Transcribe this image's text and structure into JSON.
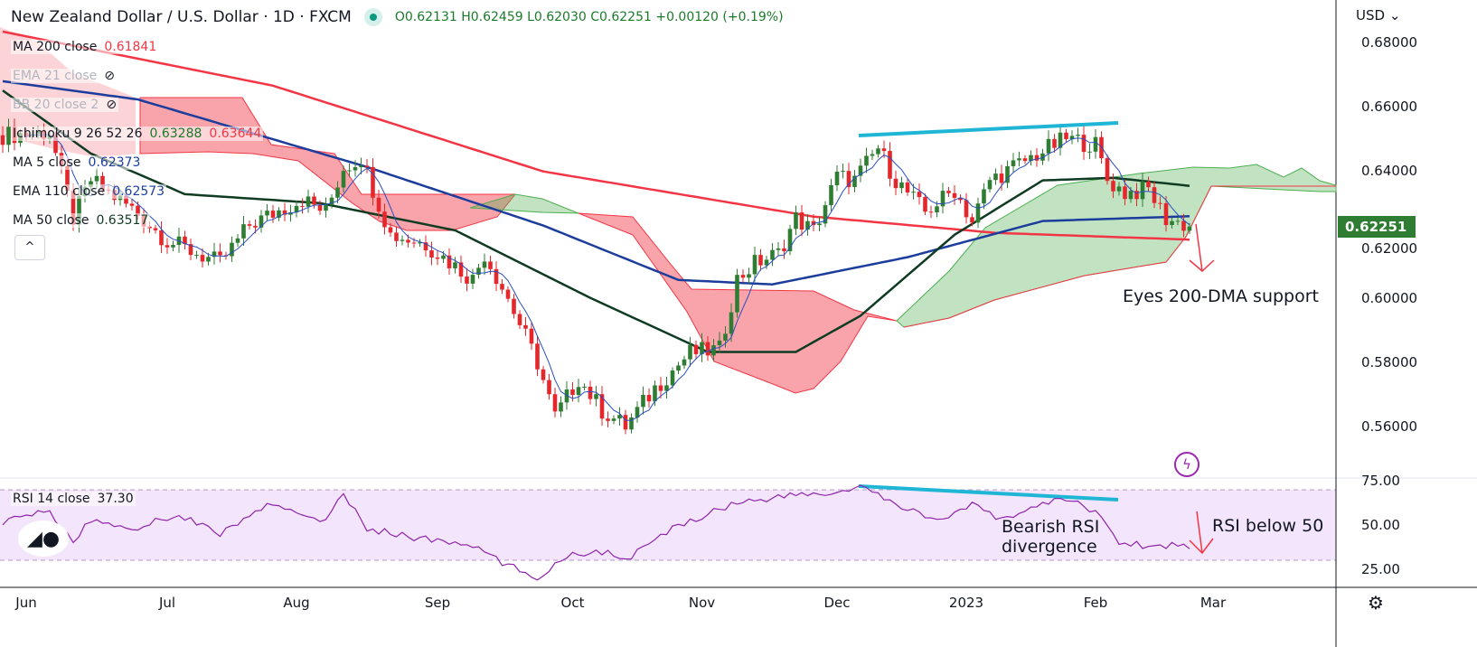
{
  "header": {
    "title": "New Zealand Dollar / U.S. Dollar · 1D · FXCM",
    "ohlc": "O0.62131 H0.62459 L0.62030 C0.62251 +0.00120 (+0.19%)"
  },
  "legend": [
    {
      "label": "MA 200 close",
      "value": "0.61841",
      "color": "#f23645"
    },
    {
      "label": "EMA 21 close",
      "hidden": true
    },
    {
      "label": "BB 20 close 2",
      "hidden": true
    },
    {
      "label": "Ichimoku 9 26 52 26",
      "value": "0.63288",
      "value2": "0.63644",
      "color": "#1b7a2a",
      "color2": "#f23645"
    },
    {
      "label": "MA 5 close",
      "value": "0.62373",
      "color": "#1c3d9c"
    },
    {
      "label": "EMA 110 close",
      "value": "0.62573",
      "color": "#1c3d9c"
    },
    {
      "label": "MA 50 close",
      "value": "0.63517",
      "color": "#0f3b22"
    }
  ],
  "rsi_legend": {
    "label": "RSI 14 close",
    "value": "37.30"
  },
  "currency": "USD",
  "collapse_label": "^",
  "annotations": {
    "support": "Eyes 200-DMA support",
    "rsi_div_1": "Bearish RSI",
    "rsi_div_2": "divergence",
    "rsi_below": "RSI below 50"
  },
  "chart_data": {
    "type": "candlestick",
    "title": "New Zealand Dollar / U.S. Dollar · 1D · FXCM",
    "last_price": "0.62251",
    "price_ticks": [
      "0.68000",
      "0.66000",
      "0.64000",
      "0.62000",
      "0.60000",
      "0.58000",
      "0.56000"
    ],
    "price_values": [
      0.68,
      0.66,
      0.64,
      0.62,
      0.6,
      0.58,
      0.56
    ],
    "ylim": [
      0.548,
      0.6834
    ],
    "rsi_ticks": [
      "75.00",
      "50.00",
      "25.00"
    ],
    "rsi_tick_values": [
      75,
      50,
      25
    ],
    "time_ticks": [
      {
        "label": "Jun",
        "idx": 4
      },
      {
        "label": "Jul",
        "idx": 28
      },
      {
        "label": "Aug",
        "idx": 50
      },
      {
        "label": "Sep",
        "idx": 74
      },
      {
        "label": "Oct",
        "idx": 97
      },
      {
        "label": "Nov",
        "idx": 119
      },
      {
        "label": "Dec",
        "idx": 142
      },
      {
        "label": "2023",
        "idx": 164
      },
      {
        "label": "Feb",
        "idx": 186
      },
      {
        "label": "Mar",
        "idx": 206
      }
    ],
    "close_anchors": [
      [
        0,
        0.651
      ],
      [
        8,
        0.652
      ],
      [
        12,
        0.625
      ],
      [
        15,
        0.637
      ],
      [
        22,
        0.628
      ],
      [
        28,
        0.618
      ],
      [
        37,
        0.611
      ],
      [
        42,
        0.623
      ],
      [
        51,
        0.631
      ],
      [
        55,
        0.627
      ],
      [
        58,
        0.641
      ],
      [
        61,
        0.644
      ],
      [
        66,
        0.62
      ],
      [
        72,
        0.617
      ],
      [
        80,
        0.606
      ],
      [
        82,
        0.614
      ],
      [
        86,
        0.6
      ],
      [
        91,
        0.58
      ],
      [
        94,
        0.563
      ],
      [
        96,
        0.569
      ],
      [
        98,
        0.575
      ],
      [
        102,
        0.565
      ],
      [
        106,
        0.56
      ],
      [
        111,
        0.572
      ],
      [
        117,
        0.583
      ],
      [
        122,
        0.584
      ],
      [
        125,
        0.606
      ],
      [
        128,
        0.611
      ],
      [
        132,
        0.614
      ],
      [
        135,
        0.625
      ],
      [
        138,
        0.621
      ],
      [
        142,
        0.638
      ],
      [
        145,
        0.637
      ],
      [
        149,
        0.647
      ],
      [
        152,
        0.637
      ],
      [
        157,
        0.627
      ],
      [
        162,
        0.634
      ],
      [
        165,
        0.624
      ],
      [
        168,
        0.637
      ],
      [
        175,
        0.644
      ],
      [
        181,
        0.65
      ],
      [
        186,
        0.648
      ],
      [
        188,
        0.637
      ],
      [
        191,
        0.633
      ],
      [
        195,
        0.634
      ],
      [
        198,
        0.625
      ],
      [
        202,
        0.6225
      ]
    ],
    "ma200": [
      [
        0,
        0.6834
      ],
      [
        46,
        0.6665
      ],
      [
        92,
        0.6397
      ],
      [
        138,
        0.6256
      ],
      [
        169,
        0.6205
      ],
      [
        202,
        0.6184
      ]
    ],
    "ema110": [
      [
        0,
        0.6679
      ],
      [
        23,
        0.6622
      ],
      [
        62,
        0.6411
      ],
      [
        92,
        0.6228
      ],
      [
        115,
        0.6058
      ],
      [
        131,
        0.6044
      ],
      [
        154,
        0.6129
      ],
      [
        177,
        0.6242
      ],
      [
        202,
        0.6257
      ]
    ],
    "ma50": [
      [
        0,
        0.665
      ],
      [
        15,
        0.6453
      ],
      [
        31,
        0.6326
      ],
      [
        54,
        0.6298
      ],
      [
        77,
        0.6213
      ],
      [
        100,
        0.6002
      ],
      [
        120,
        0.5833
      ],
      [
        135,
        0.5833
      ],
      [
        146,
        0.5946
      ],
      [
        162,
        0.6199
      ],
      [
        177,
        0.6369
      ],
      [
        189,
        0.6377
      ],
      [
        202,
        0.6352
      ]
    ],
    "rsi": [
      [
        0,
        52
      ],
      [
        8,
        58
      ],
      [
        12,
        40
      ],
      [
        15,
        53
      ],
      [
        22,
        48
      ],
      [
        30,
        56
      ],
      [
        37,
        45
      ],
      [
        45,
        61
      ],
      [
        55,
        53
      ],
      [
        58,
        67
      ],
      [
        62,
        48
      ],
      [
        70,
        43
      ],
      [
        80,
        38
      ],
      [
        86,
        27
      ],
      [
        91,
        20
      ],
      [
        96,
        33
      ],
      [
        102,
        35
      ],
      [
        106,
        30
      ],
      [
        115,
        50
      ],
      [
        125,
        63
      ],
      [
        135,
        67
      ],
      [
        142,
        68
      ],
      [
        146,
        72
      ],
      [
        152,
        61
      ],
      [
        160,
        53
      ],
      [
        165,
        61
      ],
      [
        170,
        53
      ],
      [
        176,
        61
      ],
      [
        181,
        65
      ],
      [
        186,
        58
      ],
      [
        190,
        40
      ],
      [
        196,
        38
      ],
      [
        200,
        39
      ],
      [
        202,
        37.3
      ]
    ],
    "colors": {
      "up": "#2e7d32",
      "down": "#e5262b",
      "ma200": "#f23645",
      "ema110": "#1c3d9c",
      "ma50": "#0f3b22",
      "ma5": "#2a4fbf",
      "rsi": "#8e24aa",
      "trend": "#1fb6d6"
    }
  }
}
